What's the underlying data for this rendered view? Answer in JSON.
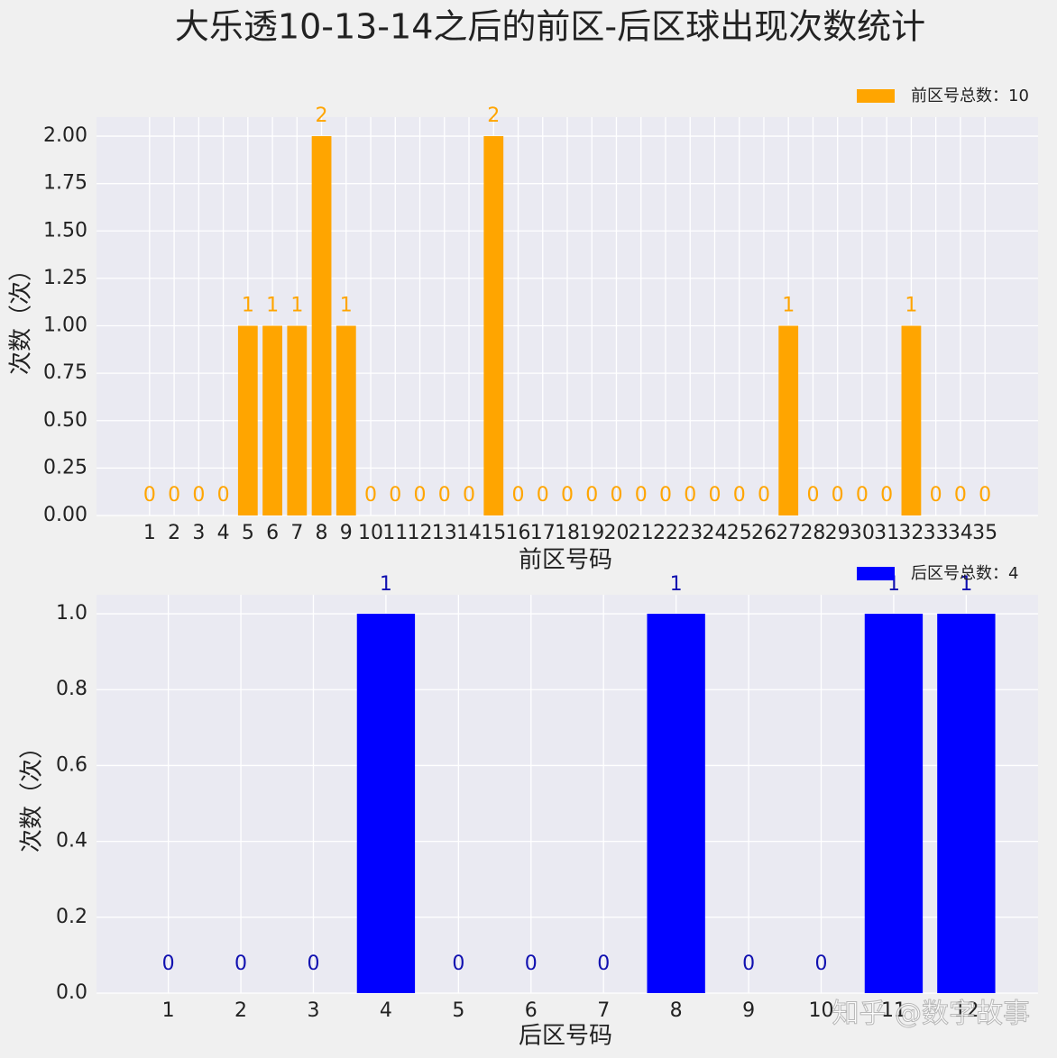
{
  "title": "大乐透10-13-14之后的前区-后区球出现次数统计",
  "watermark": "知乎 @数字故事",
  "chart_data": [
    {
      "type": "bar",
      "xlabel": "前区号码",
      "ylabel": "次数（次）",
      "categories": [
        "1",
        "2",
        "3",
        "4",
        "5",
        "6",
        "7",
        "8",
        "9",
        "10",
        "11",
        "12",
        "13",
        "14",
        "15",
        "16",
        "17",
        "18",
        "19",
        "20",
        "21",
        "22",
        "23",
        "24",
        "25",
        "26",
        "27",
        "28",
        "29",
        "30",
        "31",
        "32",
        "33",
        "34",
        "35"
      ],
      "series": [
        {
          "name": "前区号总数：10",
          "color": "#ffa500",
          "label_color": "#ffa500",
          "values": [
            0,
            0,
            0,
            0,
            1,
            1,
            1,
            2,
            1,
            0,
            0,
            0,
            0,
            0,
            2,
            0,
            0,
            0,
            0,
            0,
            0,
            0,
            0,
            0,
            0,
            0,
            1,
            0,
            0,
            0,
            0,
            1,
            0,
            0,
            0
          ]
        }
      ],
      "ylim": [
        0,
        2.1
      ],
      "yticks": [
        {
          "value": 0,
          "label": "0.00"
        },
        {
          "value": 0.25,
          "label": "0.25"
        },
        {
          "value": 0.5,
          "label": "0.50"
        },
        {
          "value": 0.75,
          "label": "0.75"
        },
        {
          "value": 1,
          "label": "1.00"
        },
        {
          "value": 1.25,
          "label": "1.25"
        },
        {
          "value": 1.5,
          "label": "1.50"
        },
        {
          "value": 1.75,
          "label": "1.75"
        },
        {
          "value": 2,
          "label": "2.00"
        }
      ],
      "grid": true,
      "legend": "upper right"
    },
    {
      "type": "bar",
      "xlabel": "后区号码",
      "ylabel": "次数（次）",
      "categories": [
        "1",
        "2",
        "3",
        "4",
        "5",
        "6",
        "7",
        "8",
        "9",
        "10",
        "11",
        "12"
      ],
      "series": [
        {
          "name": "后区号总数：4",
          "color": "#0000ff",
          "label_color": "#1010b0",
          "values": [
            0,
            0,
            0,
            1,
            0,
            0,
            0,
            1,
            0,
            0,
            1,
            1
          ]
        }
      ],
      "ylim": [
        0,
        1.05
      ],
      "yticks": [
        {
          "value": 0,
          "label": "0.0"
        },
        {
          "value": 0.2,
          "label": "0.2"
        },
        {
          "value": 0.4,
          "label": "0.4"
        },
        {
          "value": 0.6,
          "label": "0.6"
        },
        {
          "value": 0.8,
          "label": "0.8"
        },
        {
          "value": 1,
          "label": "1.0"
        }
      ],
      "grid": true,
      "legend": "upper right"
    }
  ]
}
